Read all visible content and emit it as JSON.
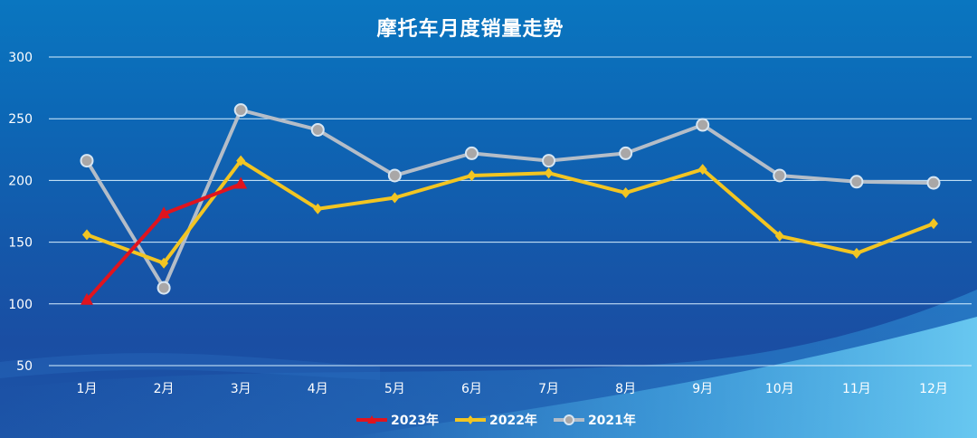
{
  "chart_data": {
    "type": "line",
    "title": "摩托车月度销量走势",
    "xlabel": "",
    "ylabel": "",
    "ylim": [
      50,
      300
    ],
    "yticks": [
      50,
      100,
      150,
      200,
      250,
      300
    ],
    "grid": true,
    "legend_position": "bottom",
    "categories": [
      "1月",
      "2月",
      "3月",
      "4月",
      "5月",
      "6月",
      "7月",
      "8月",
      "9月",
      "10月",
      "11月",
      "12月"
    ],
    "series": [
      {
        "name": "2023年",
        "color": "#e0141e",
        "marker": "triangle",
        "values": [
          103,
          173,
          197,
          null,
          null,
          null,
          null,
          null,
          null,
          null,
          null,
          null
        ]
      },
      {
        "name": "2022年",
        "color": "#f2c522",
        "marker": "diamond",
        "values": [
          156,
          133,
          216,
          177,
          186,
          204,
          206,
          190,
          209,
          155,
          141,
          165
        ]
      },
      {
        "name": "2021年",
        "color": "#b4bdc8",
        "marker": "circle",
        "values": [
          216,
          113,
          257,
          241,
          204,
          222,
          216,
          222,
          245,
          204,
          199,
          198
        ]
      }
    ]
  },
  "colors": {
    "background_top": "#0a76c0",
    "background_bottom": "#1a4ea3",
    "grid": "#d8f0ff",
    "text": "#ffffff"
  }
}
